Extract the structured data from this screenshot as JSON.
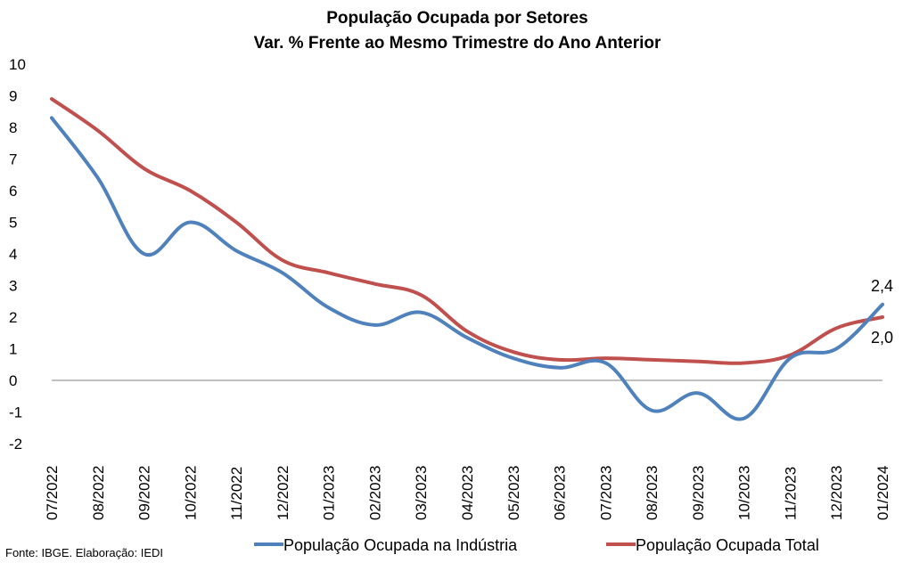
{
  "chart_data": {
    "type": "line",
    "title": "População Ocupada por Setores",
    "subtitle": "Var. % Frente ao Mesmo Trimestre do Ano Anterior",
    "categories": [
      "07/2022",
      "08/2022",
      "09/2022",
      "10/2022",
      "11/2022",
      "12/2022",
      "01/2023",
      "02/2023",
      "03/2023",
      "04/2023",
      "05/2023",
      "06/2023",
      "07/2023",
      "08/2023",
      "09/2023",
      "10/2023",
      "11/2023",
      "12/2023",
      "01/2024"
    ],
    "ylim": [
      -2,
      10
    ],
    "yticks": [
      "10",
      "9",
      "8",
      "7",
      "6",
      "5",
      "4",
      "3",
      "2",
      "1",
      "0",
      "-1",
      "-2"
    ],
    "series": [
      {
        "name": "População Ocupada na Indústria",
        "color": "#4F81BD",
        "values": [
          8.3,
          6.4,
          4.0,
          5.0,
          4.1,
          3.4,
          2.3,
          1.75,
          2.15,
          1.35,
          0.7,
          0.4,
          0.55,
          -0.95,
          -0.4,
          -1.2,
          0.7,
          1.0,
          2.4
        ],
        "end_label": "2,4"
      },
      {
        "name": "População Ocupada Total",
        "color": "#C0504D",
        "values": [
          8.9,
          7.9,
          6.7,
          6.0,
          5.0,
          3.8,
          3.4,
          3.05,
          2.7,
          1.55,
          0.9,
          0.65,
          0.7,
          0.65,
          0.6,
          0.55,
          0.8,
          1.65,
          2.0
        ],
        "end_label": "2,0"
      }
    ],
    "legend": "bottom",
    "grid": false
  },
  "source": "Fonte: IBGE. Elaboração: IEDI"
}
